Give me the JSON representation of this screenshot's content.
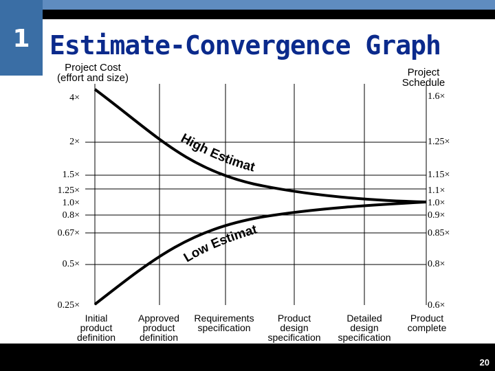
{
  "slide_number": "1",
  "title": "Estimate-Convergence Graph",
  "left_axis_label": [
    "Project Cost",
    "(effort and size)"
  ],
  "right_axis_label": [
    "Project",
    "Schedule"
  ],
  "page_number": "20",
  "chart_data": {
    "type": "line",
    "left_ticks": [
      "4×",
      "2×",
      "1.5×",
      "1.25×",
      "1.0×",
      "0.8×",
      "0.67×",
      "0.5×",
      "0.25×"
    ],
    "right_ticks": [
      "1.6×",
      "1.25×",
      "1.15×",
      "1.1×",
      "1.0×",
      "0.9×",
      "0.85×",
      "0.8×",
      "0.6×"
    ],
    "x_categories": [
      [
        "Initial",
        "product",
        "definition"
      ],
      [
        "Approved",
        "product",
        "definition"
      ],
      [
        "Requirements",
        "specification"
      ],
      [
        "Product",
        "design",
        "specification"
      ],
      [
        "Detailed",
        "design",
        "specification"
      ],
      [
        "Product",
        "complete"
      ]
    ],
    "curve_labels": [
      "High Estimate",
      "Low Estimate"
    ]
  }
}
